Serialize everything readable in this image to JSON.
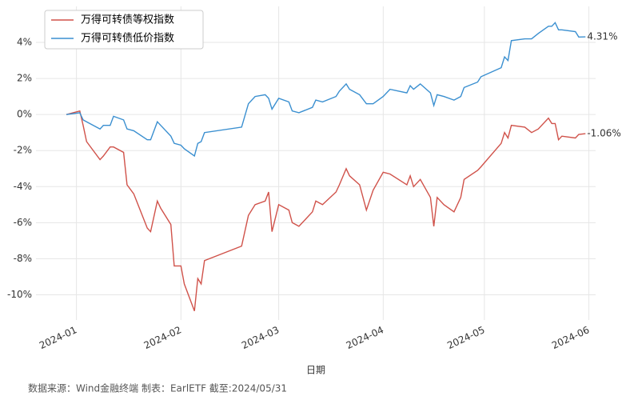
{
  "chart_data": {
    "type": "line",
    "x_label": "日期",
    "source": "数据来源：Wind金融终端 制表：EarlETF 截至:2024/05/31",
    "legend": "upper left",
    "grid": true,
    "x": [
      "2023-12-29",
      "2024-01-02",
      "2024-01-03",
      "2024-01-04",
      "2024-01-08",
      "2024-01-09",
      "2024-01-11",
      "2024-01-12",
      "2024-01-15",
      "2024-01-16",
      "2024-01-18",
      "2024-01-22",
      "2024-01-23",
      "2024-01-25",
      "2024-01-26",
      "2024-01-29",
      "2024-01-30",
      "2024-02-01",
      "2024-02-02",
      "2024-02-05",
      "2024-02-06",
      "2024-02-07",
      "2024-02-08",
      "2024-02-19",
      "2024-02-21",
      "2024-02-23",
      "2024-02-26",
      "2024-02-27",
      "2024-02-28",
      "2024-03-01",
      "2024-03-04",
      "2024-03-05",
      "2024-03-07",
      "2024-03-11",
      "2024-03-12",
      "2024-03-14",
      "2024-03-18",
      "2024-03-19",
      "2024-03-21",
      "2024-03-22",
      "2024-03-25",
      "2024-03-27",
      "2024-03-29",
      "2024-04-01",
      "2024-04-03",
      "2024-04-08",
      "2024-04-09",
      "2024-04-10",
      "2024-04-12",
      "2024-04-15",
      "2024-04-16",
      "2024-04-17",
      "2024-04-19",
      "2024-04-22",
      "2024-04-24",
      "2024-04-25",
      "2024-04-29",
      "2024-04-30",
      "2024-05-06",
      "2024-05-07",
      "2024-05-08",
      "2024-05-09",
      "2024-05-13",
      "2024-05-15",
      "2024-05-17",
      "2024-05-20",
      "2024-05-21",
      "2024-05-22",
      "2024-05-23",
      "2024-05-24",
      "2024-05-28",
      "2024-05-29",
      "2024-05-31"
    ],
    "series": [
      {
        "name": "万得可转债等权指数",
        "color": "#d0524a",
        "last_label": "-1.06%",
        "values": [
          0,
          0.2,
          -0.6,
          -1.5,
          -2.5,
          -2.3,
          -1.8,
          -1.8,
          -2.1,
          -3.9,
          -4.4,
          -6.3,
          -6.5,
          -4.8,
          -5.2,
          -6.1,
          -8.4,
          -8.4,
          -9.4,
          -10.9,
          -9.1,
          -9.4,
          -8.1,
          -7.3,
          -5.6,
          -5.0,
          -4.8,
          -4.3,
          -6.5,
          -5.0,
          -5.3,
          -6.0,
          -6.2,
          -5.4,
          -4.8,
          -5.0,
          -4.3,
          -3.9,
          -3.0,
          -3.4,
          -3.9,
          -5.3,
          -4.2,
          -3.2,
          -3.3,
          -3.9,
          -3.4,
          -4.0,
          -3.6,
          -4.6,
          -6.2,
          -4.6,
          -5.0,
          -5.4,
          -4.6,
          -3.6,
          -3.1,
          -2.9,
          -1.6,
          -1.0,
          -1.3,
          -0.6,
          -0.7,
          -1.0,
          -0.8,
          -0.2,
          -0.5,
          -0.5,
          -1.4,
          -1.2,
          -1.3,
          -1.1,
          -1.06
        ]
      },
      {
        "name": "万得可转债低价指数",
        "color": "#3a8fd0",
        "last_label": "4.31%",
        "values": [
          0,
          0.1,
          -0.3,
          -0.4,
          -0.8,
          -0.6,
          -0.6,
          -0.1,
          -0.3,
          -0.8,
          -0.9,
          -1.4,
          -1.4,
          -0.4,
          -0.6,
          -1.2,
          -1.6,
          -1.7,
          -1.9,
          -2.3,
          -1.6,
          -1.5,
          -1.0,
          -0.7,
          0.6,
          1.0,
          1.1,
          0.9,
          0.3,
          0.9,
          0.7,
          0.2,
          0.1,
          0.4,
          0.8,
          0.7,
          1.0,
          1.3,
          1.7,
          1.4,
          1.1,
          0.6,
          0.6,
          1.0,
          1.4,
          1.2,
          1.6,
          1.4,
          1.7,
          1.2,
          0.5,
          1.1,
          1.0,
          0.8,
          1.0,
          1.5,
          1.8,
          2.1,
          2.6,
          3.2,
          3.0,
          4.1,
          4.2,
          4.2,
          4.5,
          4.9,
          4.9,
          5.1,
          4.7,
          4.7,
          4.6,
          4.3,
          4.31
        ]
      }
    ],
    "xlim": [
      "2023-12-20",
      "2024-06-03"
    ],
    "xticks": [
      {
        "value": "2024-01-01",
        "label": "2024-01"
      },
      {
        "value": "2024-02-01",
        "label": "2024-02"
      },
      {
        "value": "2024-03-01",
        "label": "2024-03"
      },
      {
        "value": "2024-04-01",
        "label": "2024-04"
      },
      {
        "value": "2024-05-01",
        "label": "2024-05"
      },
      {
        "value": "2024-06-01",
        "label": "2024-06"
      }
    ],
    "ylim": [
      -11.4,
      6
    ],
    "yticks": [
      {
        "value": -10,
        "label": "-10%"
      },
      {
        "value": -8,
        "label": "-8%"
      },
      {
        "value": -6,
        "label": "-6%"
      },
      {
        "value": -4,
        "label": "-4%"
      },
      {
        "value": -2,
        "label": "-2%"
      },
      {
        "value": 0,
        "label": "0%"
      },
      {
        "value": 2,
        "label": "2%"
      },
      {
        "value": 4,
        "label": "4%"
      }
    ]
  }
}
